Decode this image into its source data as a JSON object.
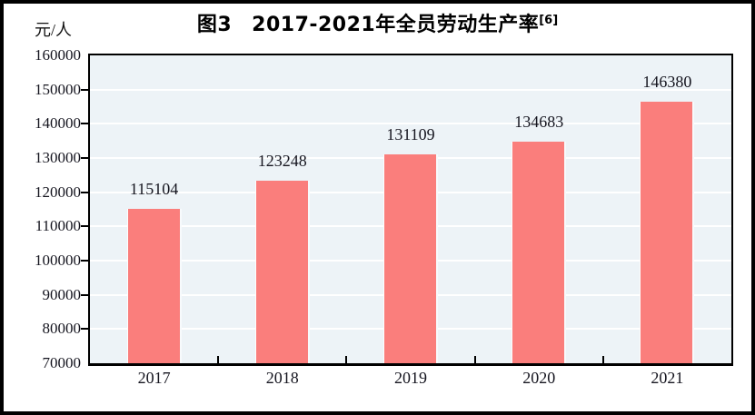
{
  "figure": {
    "title_prefix": "图3",
    "title_main": "2017-2021年全员劳动生产率",
    "title_superscript": "[6]",
    "unit_label": "元/人"
  },
  "chart_data": {
    "type": "bar",
    "title": "图3 2017-2021年全员劳动生产率[6]",
    "categories": [
      "2017",
      "2018",
      "2019",
      "2020",
      "2021"
    ],
    "values": [
      115104,
      123248,
      131109,
      134683,
      146380
    ],
    "xlabel": "",
    "ylabel": "元/人",
    "ylim": [
      70000,
      160000
    ],
    "ytick_step": 10000,
    "grid": true,
    "legend_position": "none",
    "bar_color": "#fa7e7c",
    "plot_bg_color": "#edf3f7",
    "grid_color": "#ffffff",
    "axis_color": "#000000",
    "label_color": "#15151f"
  }
}
